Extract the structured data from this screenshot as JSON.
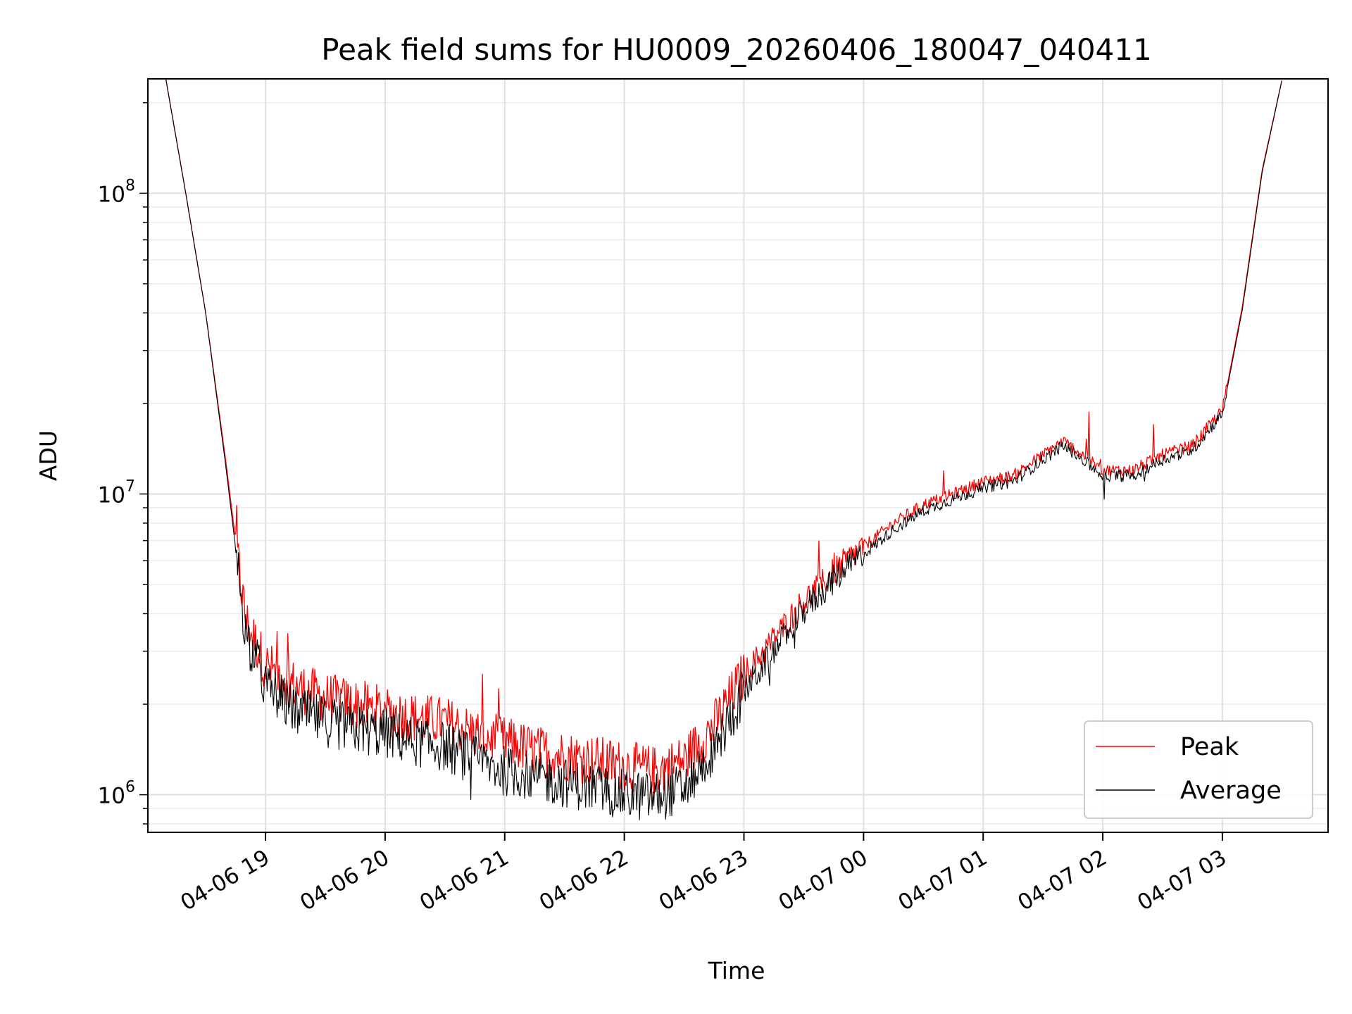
{
  "chart_data": {
    "type": "line",
    "title": "Peak field sums for HU0009_20260406_180047_040411",
    "xlabel": "Time",
    "ylabel": "ADU",
    "yscale": "log",
    "ylim": [
      750000,
      240000000
    ],
    "xlim": [
      "04-06 18:01",
      "04-07 03:53"
    ],
    "grid": true,
    "legend_position": "lower-right",
    "x_ticks": [
      {
        "x": "04-06 19:00",
        "label": "04-06 19"
      },
      {
        "x": "04-06 20:00",
        "label": "04-06 20"
      },
      {
        "x": "04-06 21:00",
        "label": "04-06 21"
      },
      {
        "x": "04-06 22:00",
        "label": "04-06 22"
      },
      {
        "x": "04-06 23:00",
        "label": "04-06 23"
      },
      {
        "x": "04-07 00:00",
        "label": "04-07 00"
      },
      {
        "x": "04-07 01:00",
        "label": "04-07 01"
      },
      {
        "x": "04-07 02:00",
        "label": "04-07 02"
      },
      {
        "x": "04-07 03:00",
        "label": "04-07 03"
      }
    ],
    "y_ticks": [
      {
        "value": 1000000,
        "base": "10",
        "exp": "6"
      },
      {
        "value": 10000000,
        "base": "10",
        "exp": "7"
      },
      {
        "value": 100000000,
        "base": "10",
        "exp": "8"
      }
    ],
    "series": [
      {
        "name": "Peak",
        "color": "#ff0000",
        "points": [
          [
            "04-06 18:10",
            240000000
          ],
          [
            "04-06 18:20",
            100000000
          ],
          [
            "04-06 18:30",
            40000000
          ],
          [
            "04-06 18:40",
            13000000
          ],
          [
            "04-06 18:50",
            3800000
          ],
          [
            "04-06 19:00",
            2700000
          ],
          [
            "04-06 19:15",
            2300000
          ],
          [
            "04-06 19:30",
            2100000
          ],
          [
            "04-06 19:45",
            2000000
          ],
          [
            "04-06 20:00",
            1900000
          ],
          [
            "04-06 20:15",
            1800000
          ],
          [
            "04-06 20:30",
            1750000
          ],
          [
            "04-06 20:45",
            1600000
          ],
          [
            "04-06 21:00",
            1500000
          ],
          [
            "04-06 21:15",
            1400000
          ],
          [
            "04-06 21:30",
            1350000
          ],
          [
            "04-06 21:45",
            1300000
          ],
          [
            "04-06 22:00",
            1250000
          ],
          [
            "04-06 22:15",
            1200000
          ],
          [
            "04-06 22:30",
            1300000
          ],
          [
            "04-06 22:45",
            1700000
          ],
          [
            "04-06 23:00",
            2500000
          ],
          [
            "04-06 23:15",
            3300000
          ],
          [
            "04-06 23:30",
            4400000
          ],
          [
            "04-06 23:45",
            5500000
          ],
          [
            "04-07 00:00",
            6700000
          ],
          [
            "04-07 00:15",
            8000000
          ],
          [
            "04-07 00:30",
            9200000
          ],
          [
            "04-07 00:45",
            10000000
          ],
          [
            "04-07 01:00",
            11000000
          ],
          [
            "04-07 01:15",
            11500000
          ],
          [
            "04-07 01:30",
            13500000
          ],
          [
            "04-07 01:40",
            15000000
          ],
          [
            "04-07 01:50",
            13500000
          ],
          [
            "04-07 02:00",
            12000000
          ],
          [
            "04-07 02:15",
            12000000
          ],
          [
            "04-07 02:30",
            13500000
          ],
          [
            "04-07 02:45",
            14500000
          ],
          [
            "04-07 03:00",
            19000000
          ],
          [
            "04-07 03:10",
            42000000
          ],
          [
            "04-07 03:20",
            120000000
          ],
          [
            "04-07 03:30",
            240000000
          ]
        ]
      },
      {
        "name": "Average",
        "color": "#000000",
        "points": [
          [
            "04-06 18:10",
            240000000
          ],
          [
            "04-06 18:20",
            100000000
          ],
          [
            "04-06 18:30",
            40000000
          ],
          [
            "04-06 18:40",
            12500000
          ],
          [
            "04-06 18:50",
            3500000
          ],
          [
            "04-06 19:00",
            2300000
          ],
          [
            "04-06 19:15",
            1900000
          ],
          [
            "04-06 19:30",
            1750000
          ],
          [
            "04-06 19:45",
            1650000
          ],
          [
            "04-06 20:00",
            1600000
          ],
          [
            "04-06 20:15",
            1500000
          ],
          [
            "04-06 20:30",
            1450000
          ],
          [
            "04-06 20:45",
            1300000
          ],
          [
            "04-06 21:00",
            1200000
          ],
          [
            "04-06 21:15",
            1150000
          ],
          [
            "04-06 21:30",
            1100000
          ],
          [
            "04-06 21:45",
            1050000
          ],
          [
            "04-06 22:00",
            1000000
          ],
          [
            "04-06 22:15",
            980000
          ],
          [
            "04-06 22:30",
            1050000
          ],
          [
            "04-06 22:45",
            1400000
          ],
          [
            "04-06 23:00",
            2200000
          ],
          [
            "04-06 23:15",
            3000000
          ],
          [
            "04-06 23:30",
            4100000
          ],
          [
            "04-06 23:45",
            5200000
          ],
          [
            "04-07 00:00",
            6300000
          ],
          [
            "04-07 00:15",
            7600000
          ],
          [
            "04-07 00:30",
            8800000
          ],
          [
            "04-07 00:45",
            9600000
          ],
          [
            "04-07 01:00",
            10500000
          ],
          [
            "04-07 01:15",
            11000000
          ],
          [
            "04-07 01:30",
            13000000
          ],
          [
            "04-07 01:40",
            14500000
          ],
          [
            "04-07 01:50",
            13000000
          ],
          [
            "04-07 02:00",
            11500000
          ],
          [
            "04-07 02:15",
            11500000
          ],
          [
            "04-07 02:30",
            13000000
          ],
          [
            "04-07 02:45",
            14000000
          ],
          [
            "04-07 03:00",
            18500000
          ],
          [
            "04-07 03:10",
            41000000
          ],
          [
            "04-07 03:20",
            118000000
          ],
          [
            "04-07 03:30",
            240000000
          ]
        ]
      }
    ]
  }
}
